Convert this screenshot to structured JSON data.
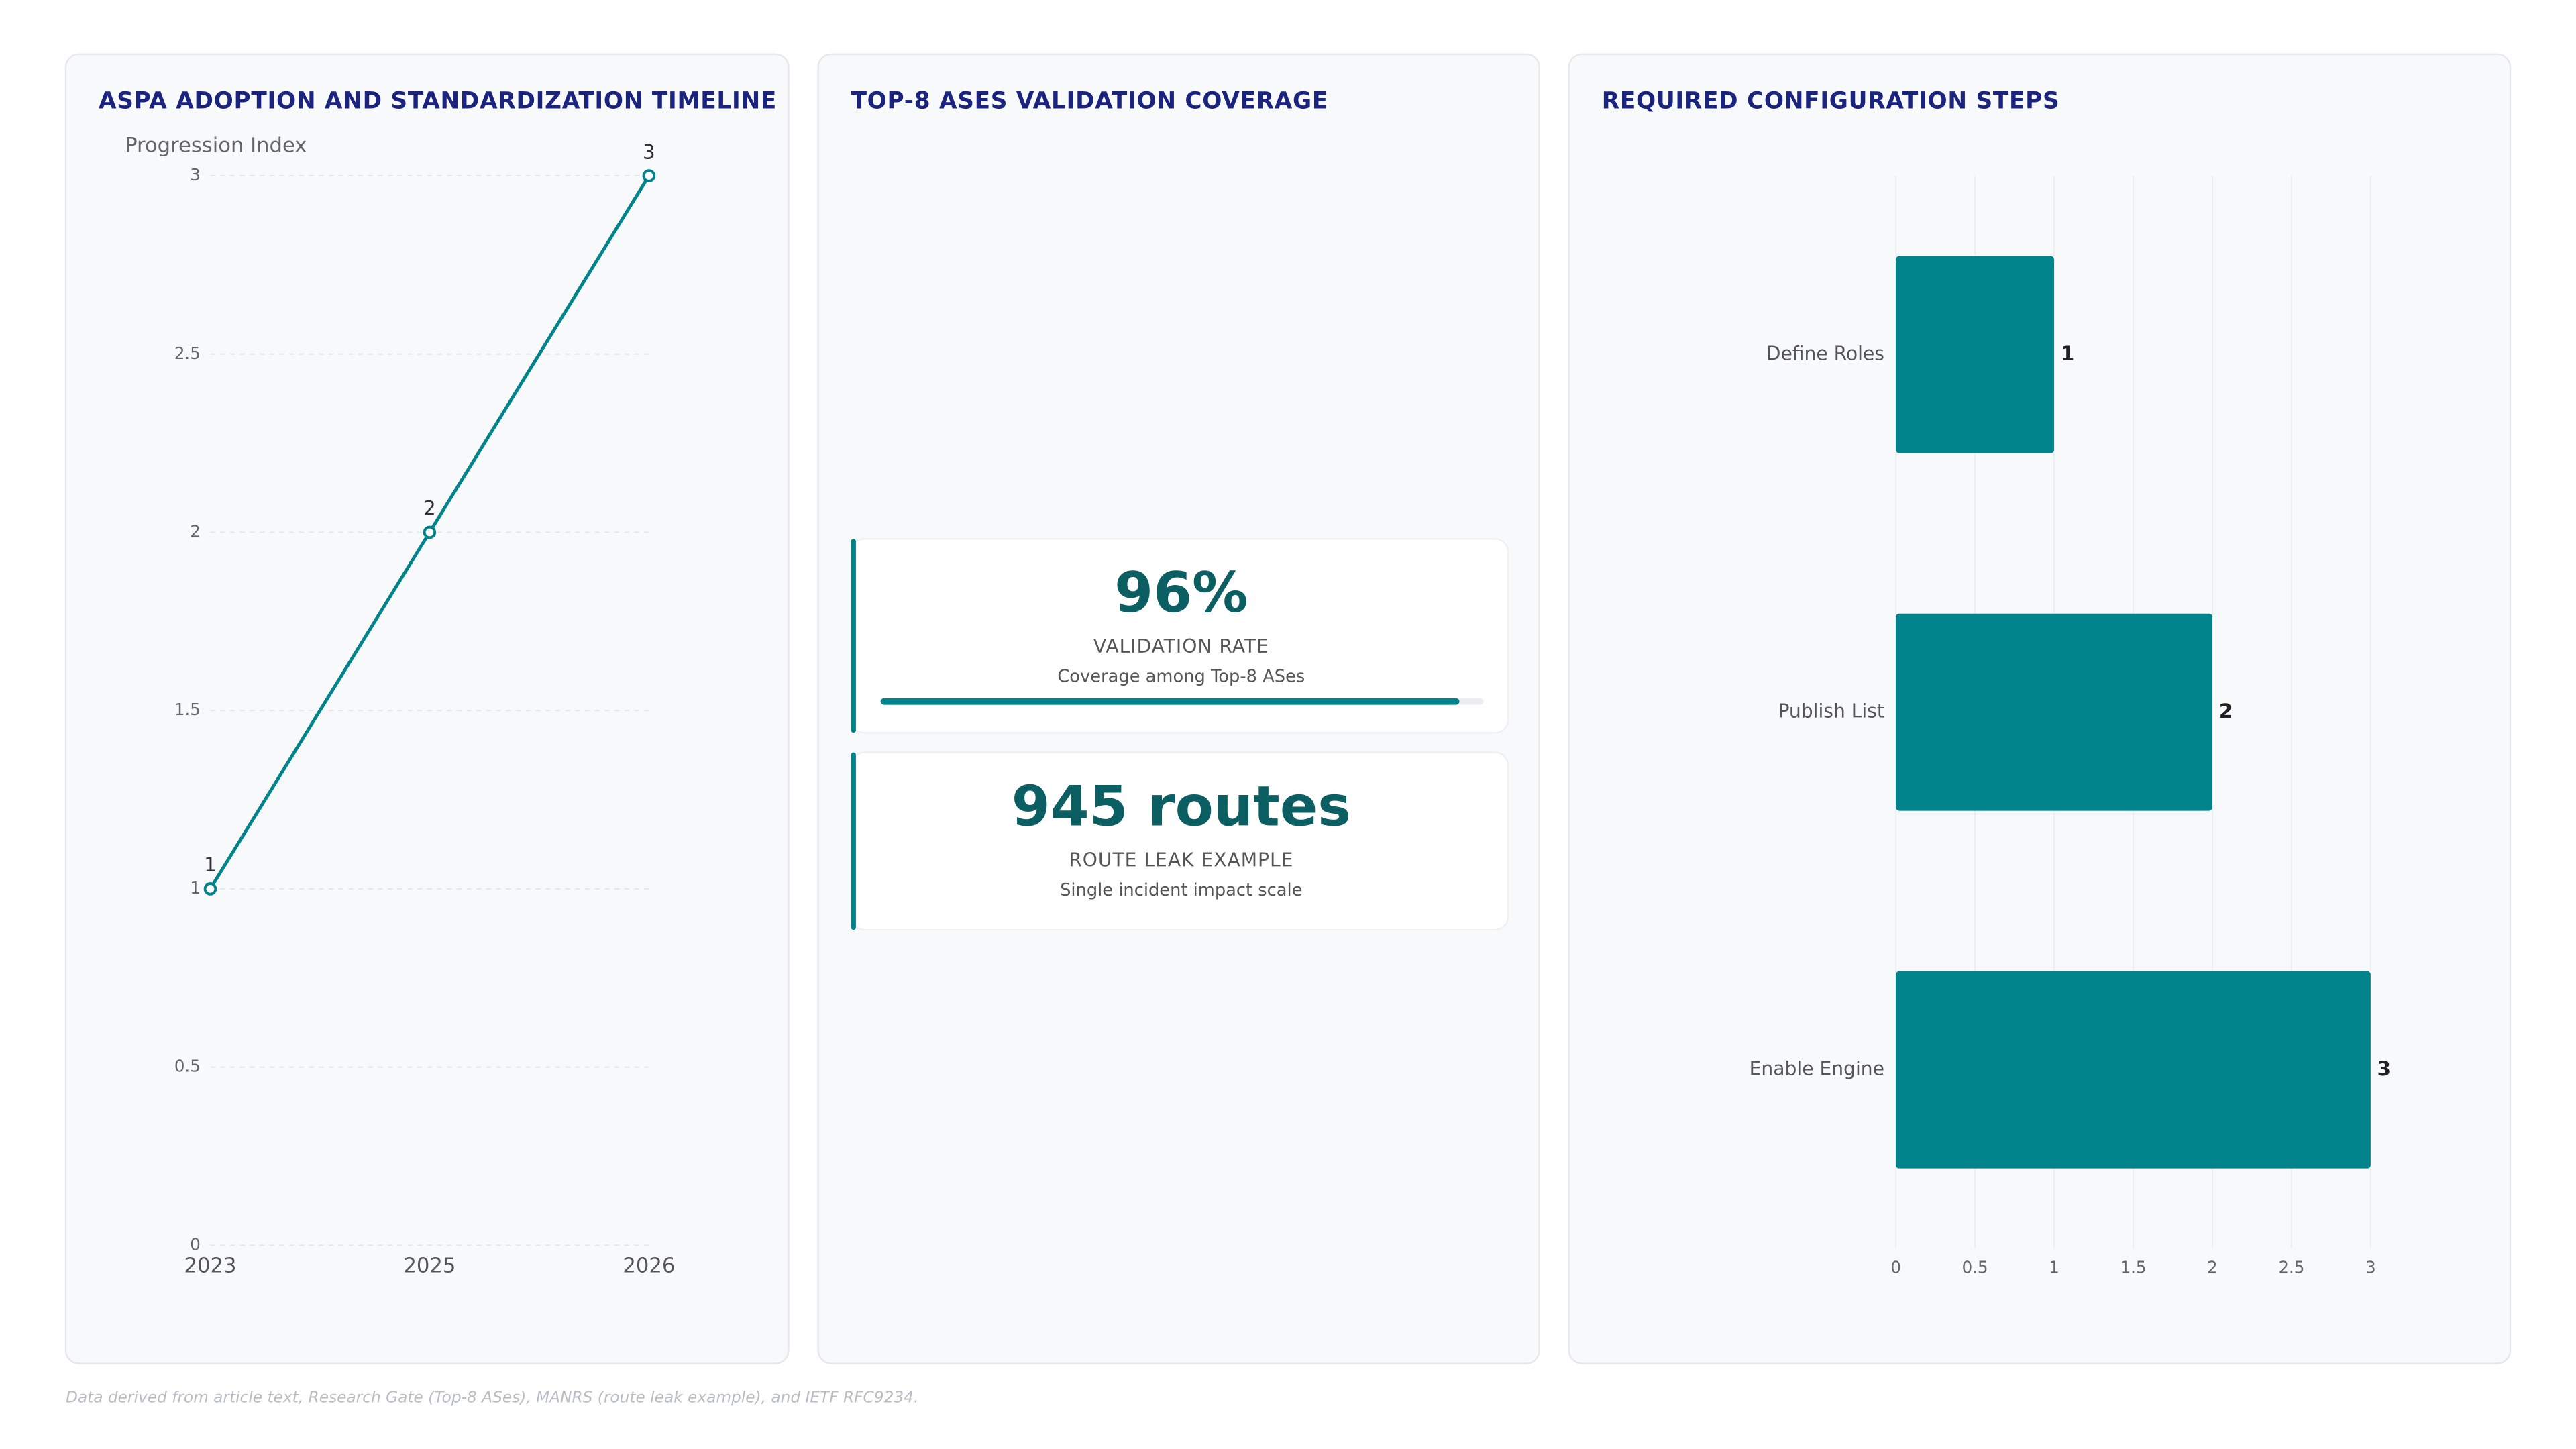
{
  "chart_data": [
    {
      "type": "line",
      "title": "ASPA ADOPTION AND STANDARDIZATION TIMELINE",
      "y_label": "Progression Index",
      "categories": [
        "2023",
        "2025",
        "2026"
      ],
      "values": [
        1,
        2,
        3
      ],
      "color": "#00838a",
      "ylim": [
        0,
        3
      ],
      "yticks": [
        0,
        0.5,
        1,
        1.5,
        2,
        2.5,
        3
      ],
      "grid": true
    },
    {
      "type": "hbar",
      "title": "REQUIRED CONFIGURATION STEPS",
      "categories": [
        "Define Roles",
        "Publish List",
        "Enable Engine"
      ],
      "values": [
        1,
        2,
        3
      ],
      "color": "#00838a",
      "xlim": [
        0,
        3
      ],
      "xticks": [
        0,
        0.5,
        1,
        1.5,
        2,
        2.5,
        3
      ],
      "grid": true
    }
  ],
  "kpi_panel": {
    "title": "TOP-8 ASES VALIDATION COVERAGE",
    "cards": [
      {
        "value": 96,
        "value_label": "96%",
        "label": "VALIDATION RATE",
        "caption": "Coverage among Top-8 ASes",
        "progress": true
      },
      {
        "value": 945,
        "value_label": "945 routes",
        "label": "ROUTE LEAK EXAMPLE",
        "caption": "Single incident impact scale",
        "progress": false
      }
    ]
  },
  "footer": "Data derived from article text, Research Gate (Top-8 ASes), MANRS (route leak example), and IETF RFC9234."
}
